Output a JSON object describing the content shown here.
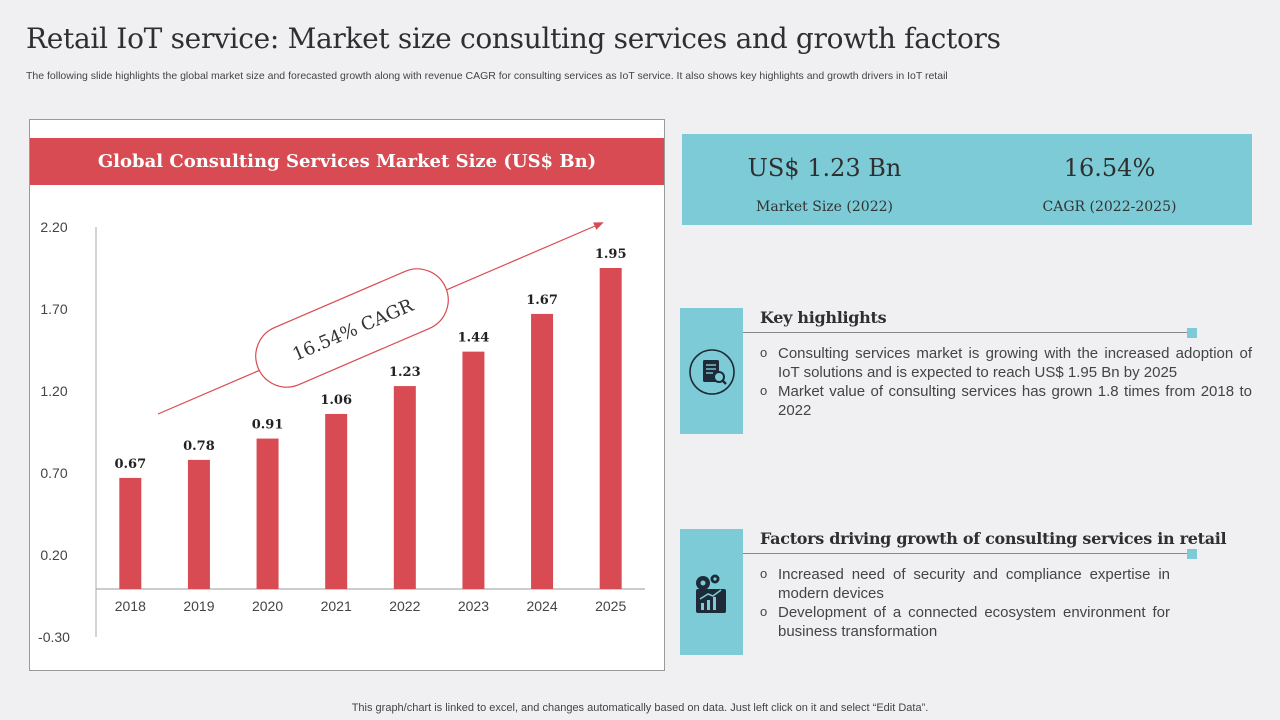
{
  "title": "Retail IoT service: Market size consulting services and growth factors",
  "subtitle": "The following slide highlights the global market size and forecasted growth along with revenue CAGR for consulting services as IoT service. It also shows key highlights and growth drivers in IoT retail",
  "chart_data": {
    "type": "bar",
    "title": "Global Consulting Services Market Size (US$ Bn)",
    "categories": [
      "2018",
      "2019",
      "2020",
      "2021",
      "2022",
      "2023",
      "2024",
      "2025"
    ],
    "values": [
      0.67,
      0.78,
      0.91,
      1.06,
      1.23,
      1.44,
      1.67,
      1.95
    ],
    "value_labels": [
      "0.67",
      "0.78",
      "0.91",
      "1.06",
      "1.23",
      "1.44",
      "1.67",
      "1.95"
    ],
    "y_ticks": [
      -0.3,
      0.2,
      0.7,
      1.2,
      1.7,
      2.2
    ],
    "y_tick_labels": [
      "-0.30",
      "0.20",
      "0.70",
      "1.20",
      "1.70",
      "2.20"
    ],
    "ylim": [
      -0.3,
      2.2
    ],
    "annotation": "16.54% CAGR",
    "bar_color": "#d94b52",
    "xlabel": "",
    "ylabel": ""
  },
  "stats": {
    "market_size_value": "US$ 1.23 Bn",
    "market_size_label": "Market Size (2022)",
    "cagr_value": "16.54%",
    "cagr_label": "CAGR (2022-2025)"
  },
  "highlights": {
    "title": "Key highlights",
    "items": [
      "Consulting services market is growing with the increased adoption of IoT solutions and is expected to reach US$ 1.95 Bn by 2025",
      "Market value of consulting services has grown 1.8 times from 2018 to 2022"
    ]
  },
  "factors": {
    "title": "Factors driving growth of consulting services in retail",
    "items": [
      "Increased need of security and compliance expertise in modern devices",
      "Development of a connected ecosystem environment for business transformation"
    ]
  },
  "footer": "This graph/chart is linked to excel,  and changes automatically based on data. Just left click on it and select “Edit Data”.",
  "colors": {
    "accent_red": "#d94b52",
    "accent_teal": "#7ccbd6",
    "background": "#f0f0f2"
  }
}
